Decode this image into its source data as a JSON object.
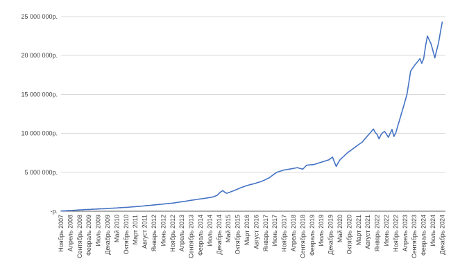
{
  "colors": {
    "series_line": "#4472C4",
    "gridline": "#D9D9D9",
    "axis_line": "#595959",
    "tick_label": "#404040",
    "background": "#FFFFFF"
  },
  "chart_data": {
    "type": "line",
    "title": "",
    "xlabel": "",
    "ylabel": "",
    "legend": "none",
    "grid": "horizontal",
    "x_unit": "month",
    "x_start": "Ноябрь 2007",
    "x_end": "Декабрь 2024",
    "points_count": 206,
    "x_tick_every": 5,
    "x_tick_labels": [
      "Ноябрь 2007",
      "Апрель 2008",
      "Сентябрь 2008",
      "Февраль 2009",
      "Июль 2009",
      "Декабрь 2009",
      "Май 2010",
      "Октябрь 2010",
      "Март 2011",
      "Август 2011",
      "Январь 2012",
      "Июнь 2012",
      "Ноябрь 2012",
      "Апрель 2013",
      "Сентябрь 2013",
      "Февраль 2014",
      "Июль 2014",
      "Декабрь 2014",
      "Май 2015",
      "Октябрь 2015",
      "Март 2016",
      "Август 2016",
      "Январь 2017",
      "Июнь 2017",
      "Ноябрь 2017",
      "Апрель 2018",
      "Сентябрь 2018",
      "Февраль 2019",
      "Июль 2019",
      "Декабрь 2019",
      "Май 2020",
      "Октябрь 2020",
      "Март 2021",
      "Август 2021",
      "Январь 2022",
      "Июнь 2022",
      "Ноябрь 2022",
      "Апрель 2023",
      "Сентябрь 2023",
      "Февраль 2024",
      "Июль 2024",
      "Декабрь 2024"
    ],
    "y_tick_labels": [
      "25 000 000р.",
      "20 000 000р.",
      "15 000 000р.",
      "10 000 000р.",
      "5 000 000р.",
      "-р."
    ],
    "y_tick_values_rub": [
      25000000,
      20000000,
      15000000,
      10000000,
      5000000,
      0
    ],
    "ylim_rub": [
      0,
      25000000
    ],
    "series": [
      {
        "values_rub_millions": [
          0.03,
          0.04,
          0.05,
          0.06,
          0.08,
          0.09,
          0.1,
          0.12,
          0.13,
          0.15,
          0.17,
          0.18,
          0.2,
          0.21,
          0.22,
          0.23,
          0.24,
          0.26,
          0.27,
          0.28,
          0.29,
          0.3,
          0.31,
          0.32,
          0.33,
          0.35,
          0.36,
          0.38,
          0.39,
          0.41,
          0.42,
          0.44,
          0.45,
          0.47,
          0.48,
          0.5,
          0.51,
          0.53,
          0.55,
          0.57,
          0.59,
          0.61,
          0.63,
          0.65,
          0.67,
          0.69,
          0.72,
          0.74,
          0.76,
          0.78,
          0.81,
          0.83,
          0.85,
          0.88,
          0.9,
          0.92,
          0.95,
          0.97,
          1.0,
          1.02,
          1.04,
          1.08,
          1.11,
          1.15,
          1.18,
          1.22,
          1.25,
          1.29,
          1.33,
          1.37,
          1.41,
          1.44,
          1.48,
          1.51,
          1.55,
          1.58,
          1.61,
          1.65,
          1.68,
          1.72,
          1.76,
          1.81,
          1.85,
          1.95,
          2.05,
          2.3,
          2.5,
          2.65,
          2.45,
          2.3,
          2.38,
          2.47,
          2.55,
          2.65,
          2.75,
          2.85,
          2.95,
          3.04,
          3.13,
          3.21,
          3.3,
          3.36,
          3.43,
          3.49,
          3.55,
          3.62,
          3.7,
          3.77,
          3.85,
          3.96,
          4.07,
          4.19,
          4.3,
          4.48,
          4.65,
          4.83,
          5.0,
          5.08,
          5.15,
          5.23,
          5.3,
          5.34,
          5.38,
          5.41,
          5.45,
          5.5,
          5.55,
          5.6,
          5.53,
          5.47,
          5.4,
          5.65,
          5.9,
          5.93,
          5.95,
          5.98,
          6.0,
          6.08,
          6.15,
          6.23,
          6.3,
          6.38,
          6.45,
          6.53,
          6.6,
          6.78,
          6.95,
          6.3,
          5.75,
          6.2,
          6.6,
          6.83,
          7.05,
          7.28,
          7.5,
          7.68,
          7.85,
          8.03,
          8.2,
          8.38,
          8.55,
          8.73,
          8.9,
          9.18,
          9.45,
          9.73,
          10.0,
          10.28,
          10.55,
          10.1,
          9.85,
          9.3,
          9.8,
          10.1,
          10.25,
          9.9,
          9.5,
          10.0,
          10.5,
          9.6,
          10.05,
          10.9,
          11.7,
          12.5,
          13.3,
          14.15,
          15.0,
          16.5,
          18.0,
          18.35,
          18.7,
          19.0,
          19.3,
          19.6,
          19.0,
          19.6,
          21.2,
          22.5,
          22.0,
          21.5,
          20.6,
          19.7,
          20.7,
          21.6,
          23.0,
          24.3
        ]
      }
    ]
  }
}
